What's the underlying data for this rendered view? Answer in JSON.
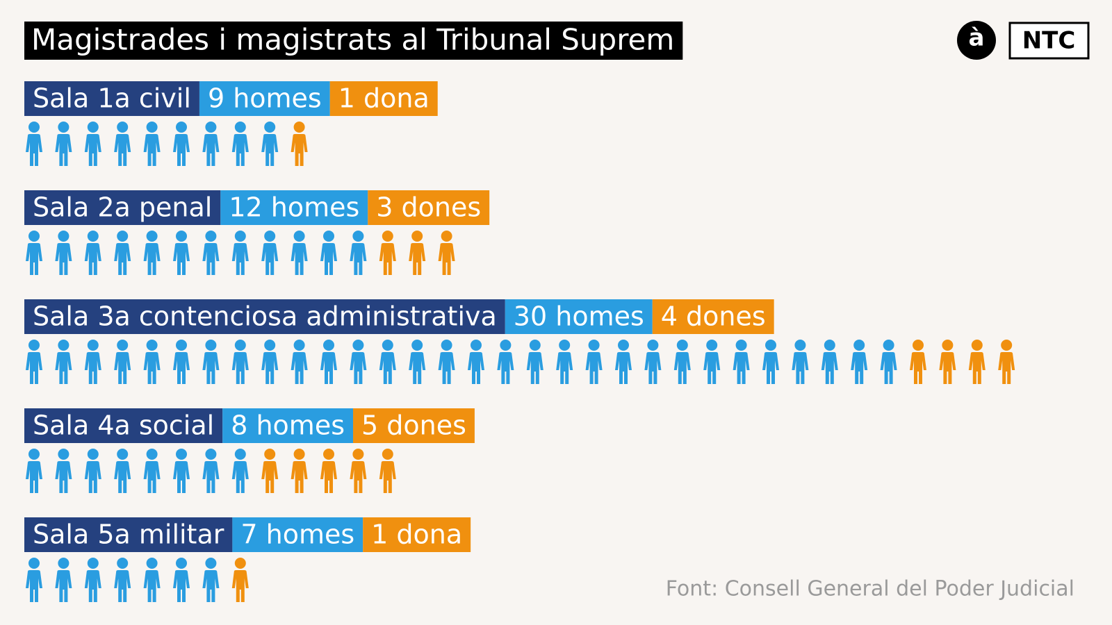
{
  "chart_data": {
    "type": "pictogram",
    "title": "Magistrades i magistrats al Tribunal Suprem",
    "logos": [
      "à",
      "NTC"
    ],
    "source": "Font: Consell General del Poder Judicial",
    "category_color": "#25417f",
    "categories": [
      "Sala 1a civil",
      "Sala 2a penal",
      "Sala 3a contenciosa administrativa",
      "Sala 4a social",
      "Sala 5a militar"
    ],
    "series": [
      {
        "name": "homes",
        "color": "#2a9de0",
        "values": [
          9,
          12,
          30,
          8,
          7
        ],
        "value_labels": [
          "9 homes",
          "12 homes",
          "30 homes",
          "8 homes",
          "7 homes"
        ]
      },
      {
        "name": "dones",
        "color": "#f0900f",
        "values": [
          1,
          3,
          4,
          5,
          1
        ],
        "value_labels": [
          "1 dona",
          "3 dones",
          "4 dones",
          "5 dones",
          "1 dona"
        ]
      }
    ]
  }
}
